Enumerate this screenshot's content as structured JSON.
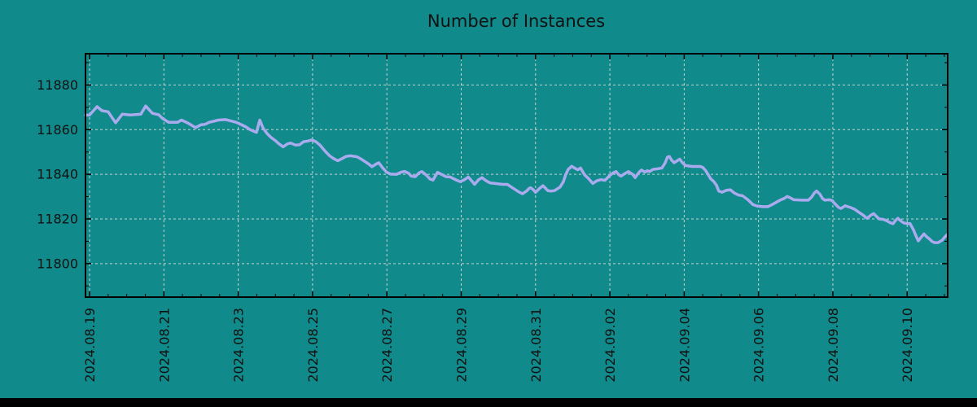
{
  "chart_data": {
    "type": "line",
    "title": "Number of Instances",
    "legend": null,
    "grid": "dashed, major ticks only",
    "background_color": "#108a8a",
    "line_color": "#aaabef",
    "grid_color": "#c4d2d0",
    "text_color": "#111111",
    "border_color": "#000000",
    "bottom_bar_color": "#000000",
    "ylabel": "",
    "xlabel": "",
    "y_ticks": [
      11800,
      11820,
      11840,
      11860,
      11880
    ],
    "y_minor_step": 10,
    "ylim": [
      11785,
      11894
    ],
    "x_tick_labels": [
      "2024.08.19",
      "2024.08.21",
      "2024.08.23",
      "2024.08.25",
      "2024.08.27",
      "2024.08.29",
      "2024.08.31",
      "2024.09.02",
      "2024.09.04",
      "2024.09.06",
      "2024.09.08",
      "2024.09.10"
    ],
    "x_tick_days": [
      0,
      2,
      4,
      6,
      8,
      10,
      12,
      14,
      16,
      18,
      20,
      22
    ],
    "x_minor_step_days": 0.5,
    "xlim_days": [
      -0.11,
      23.09
    ],
    "x_unit": "days since 2024.08.19",
    "points": [
      [
        -0.11,
        11866.5
      ],
      [
        0.0,
        11866.5
      ],
      [
        0.2,
        11870.3
      ],
      [
        0.33,
        11868.5
      ],
      [
        0.5,
        11868.0
      ],
      [
        0.7,
        11863.1
      ],
      [
        0.88,
        11866.9
      ],
      [
        1.1,
        11866.6
      ],
      [
        1.38,
        11866.9
      ],
      [
        1.51,
        11870.6
      ],
      [
        1.69,
        11867.3
      ],
      [
        1.86,
        11866.7
      ],
      [
        1.97,
        11864.9
      ],
      [
        2.13,
        11863.3
      ],
      [
        2.37,
        11863.3
      ],
      [
        2.47,
        11864.3
      ],
      [
        2.63,
        11863.1
      ],
      [
        2.85,
        11860.9
      ],
      [
        3.0,
        11862.2
      ],
      [
        3.11,
        11862.4
      ],
      [
        3.22,
        11863.3
      ],
      [
        3.33,
        11863.7
      ],
      [
        3.46,
        11864.3
      ],
      [
        3.66,
        11864.5
      ],
      [
        3.94,
        11863.3
      ],
      [
        4.1,
        11862.1
      ],
      [
        4.21,
        11861.2
      ],
      [
        4.32,
        11860.0
      ],
      [
        4.49,
        11858.8
      ],
      [
        4.58,
        11864.3
      ],
      [
        4.67,
        11860.6
      ],
      [
        4.78,
        11858.2
      ],
      [
        4.89,
        11856.4
      ],
      [
        4.99,
        11855.2
      ],
      [
        5.1,
        11853.6
      ],
      [
        5.21,
        11852.3
      ],
      [
        5.32,
        11853.6
      ],
      [
        5.41,
        11854.0
      ],
      [
        5.54,
        11853.1
      ],
      [
        5.65,
        11853.2
      ],
      [
        5.76,
        11854.6
      ],
      [
        5.87,
        11854.9
      ],
      [
        5.98,
        11855.4
      ],
      [
        6.09,
        11854.6
      ],
      [
        6.2,
        11853.1
      ],
      [
        6.35,
        11850.1
      ],
      [
        6.46,
        11848.3
      ],
      [
        6.57,
        11847.0
      ],
      [
        6.68,
        11846.1
      ],
      [
        6.79,
        11847.0
      ],
      [
        6.9,
        11848.0
      ],
      [
        7.01,
        11848.3
      ],
      [
        7.19,
        11847.9
      ],
      [
        7.29,
        11847.0
      ],
      [
        7.4,
        11845.8
      ],
      [
        7.51,
        11844.6
      ],
      [
        7.6,
        11843.4
      ],
      [
        7.71,
        11844.6
      ],
      [
        7.78,
        11845.2
      ],
      [
        7.89,
        11842.8
      ],
      [
        7.99,
        11841.0
      ],
      [
        8.1,
        11840.1
      ],
      [
        8.26,
        11840.0
      ],
      [
        8.39,
        11841.0
      ],
      [
        8.48,
        11841.3
      ],
      [
        8.59,
        11840.4
      ],
      [
        8.65,
        11839.2
      ],
      [
        8.76,
        11838.9
      ],
      [
        8.87,
        11840.7
      ],
      [
        8.94,
        11841.2
      ],
      [
        9.05,
        11839.8
      ],
      [
        9.16,
        11837.9
      ],
      [
        9.24,
        11837.4
      ],
      [
        9.36,
        11840.9
      ],
      [
        9.49,
        11839.8
      ],
      [
        9.59,
        11838.9
      ],
      [
        9.7,
        11838.8
      ],
      [
        9.86,
        11837.5
      ],
      [
        9.97,
        11836.7
      ],
      [
        10.08,
        11837.5
      ],
      [
        10.19,
        11838.8
      ],
      [
        10.3,
        11836.7
      ],
      [
        10.36,
        11835.5
      ],
      [
        10.47,
        11837.6
      ],
      [
        10.56,
        11838.5
      ],
      [
        10.67,
        11837.1
      ],
      [
        10.78,
        11836.1
      ],
      [
        10.91,
        11835.9
      ],
      [
        11.11,
        11835.5
      ],
      [
        11.24,
        11835.5
      ],
      [
        11.35,
        11834.3
      ],
      [
        11.46,
        11833.1
      ],
      [
        11.57,
        11831.9
      ],
      [
        11.65,
        11831.3
      ],
      [
        11.76,
        11832.5
      ],
      [
        11.83,
        11833.7
      ],
      [
        11.87,
        11834.0
      ],
      [
        11.94,
        11833.1
      ],
      [
        12.0,
        11831.9
      ],
      [
        12.11,
        11833.7
      ],
      [
        12.2,
        11834.9
      ],
      [
        12.27,
        11833.7
      ],
      [
        12.33,
        11832.7
      ],
      [
        12.42,
        11832.5
      ],
      [
        12.51,
        11832.7
      ],
      [
        12.66,
        11834.3
      ],
      [
        12.75,
        11836.7
      ],
      [
        12.81,
        11839.8
      ],
      [
        12.88,
        11842.2
      ],
      [
        12.97,
        11843.6
      ],
      [
        13.08,
        11842.5
      ],
      [
        13.14,
        11842.0
      ],
      [
        13.21,
        11842.8
      ],
      [
        13.32,
        11839.8
      ],
      [
        13.43,
        11838.0
      ],
      [
        13.54,
        11835.9
      ],
      [
        13.65,
        11837.1
      ],
      [
        13.76,
        11837.6
      ],
      [
        13.87,
        11837.3
      ],
      [
        13.98,
        11839.2
      ],
      [
        14.09,
        11840.7
      ],
      [
        14.17,
        11841.2
      ],
      [
        14.24,
        11839.8
      ],
      [
        14.3,
        11839.2
      ],
      [
        14.41,
        11840.4
      ],
      [
        14.5,
        11841.2
      ],
      [
        14.61,
        11840.0
      ],
      [
        14.68,
        11838.5
      ],
      [
        14.79,
        11841.0
      ],
      [
        14.85,
        11841.9
      ],
      [
        14.94,
        11841.0
      ],
      [
        15.01,
        11841.6
      ],
      [
        15.07,
        11841.2
      ],
      [
        15.16,
        11842.2
      ],
      [
        15.29,
        11842.5
      ],
      [
        15.4,
        11842.8
      ],
      [
        15.49,
        11845.2
      ],
      [
        15.55,
        11847.7
      ],
      [
        15.6,
        11848.0
      ],
      [
        15.66,
        11846.4
      ],
      [
        15.73,
        11845.2
      ],
      [
        15.84,
        11846.4
      ],
      [
        15.88,
        11846.8
      ],
      [
        15.95,
        11845.2
      ],
      [
        16.04,
        11843.9
      ],
      [
        16.21,
        11843.5
      ],
      [
        16.43,
        11843.5
      ],
      [
        16.5,
        11843.1
      ],
      [
        16.58,
        11841.6
      ],
      [
        16.65,
        11839.8
      ],
      [
        16.71,
        11838.0
      ],
      [
        16.8,
        11836.7
      ],
      [
        16.87,
        11835.0
      ],
      [
        16.93,
        11832.5
      ],
      [
        17.02,
        11832.0
      ],
      [
        17.13,
        11832.8
      ],
      [
        17.24,
        11833.1
      ],
      [
        17.35,
        11831.6
      ],
      [
        17.46,
        11830.7
      ],
      [
        17.57,
        11830.4
      ],
      [
        17.7,
        11828.8
      ],
      [
        17.79,
        11827.4
      ],
      [
        17.85,
        11826.4
      ],
      [
        17.96,
        11825.8
      ],
      [
        18.12,
        11825.5
      ],
      [
        18.25,
        11825.5
      ],
      [
        18.36,
        11826.4
      ],
      [
        18.47,
        11827.4
      ],
      [
        18.58,
        11828.4
      ],
      [
        18.69,
        11829.2
      ],
      [
        18.77,
        11830.1
      ],
      [
        18.84,
        11829.6
      ],
      [
        18.95,
        11828.6
      ],
      [
        19.17,
        11828.4
      ],
      [
        19.34,
        11828.4
      ],
      [
        19.43,
        11829.8
      ],
      [
        19.5,
        11831.6
      ],
      [
        19.56,
        11832.5
      ],
      [
        19.65,
        11831.1
      ],
      [
        19.72,
        11829.2
      ],
      [
        19.78,
        11828.4
      ],
      [
        19.89,
        11828.6
      ],
      [
        19.98,
        11828.3
      ],
      [
        20.04,
        11827.1
      ],
      [
        20.15,
        11825.2
      ],
      [
        20.22,
        11824.7
      ],
      [
        20.33,
        11825.9
      ],
      [
        20.48,
        11825.1
      ],
      [
        20.59,
        11824.3
      ],
      [
        20.7,
        11823.0
      ],
      [
        20.81,
        11821.8
      ],
      [
        20.92,
        11820.3
      ],
      [
        21.03,
        11821.8
      ],
      [
        21.1,
        11822.4
      ],
      [
        21.18,
        11821.0
      ],
      [
        21.25,
        11820.0
      ],
      [
        21.36,
        11819.8
      ],
      [
        21.47,
        11819.0
      ],
      [
        21.53,
        11818.4
      ],
      [
        21.62,
        11817.9
      ],
      [
        21.69,
        11819.4
      ],
      [
        21.75,
        11820.3
      ],
      [
        21.84,
        11819.0
      ],
      [
        21.91,
        11818.2
      ],
      [
        22.02,
        11817.9
      ],
      [
        22.08,
        11817.9
      ],
      [
        22.17,
        11815.1
      ],
      [
        22.23,
        11812.7
      ],
      [
        22.3,
        11810.2
      ],
      [
        22.39,
        11812.1
      ],
      [
        22.45,
        11813.3
      ],
      [
        22.52,
        11812.1
      ],
      [
        22.61,
        11810.9
      ],
      [
        22.67,
        11809.9
      ],
      [
        22.74,
        11809.4
      ],
      [
        22.83,
        11809.4
      ],
      [
        22.94,
        11810.5
      ],
      [
        23.0,
        11811.7
      ],
      [
        23.07,
        11812.9
      ]
    ]
  }
}
